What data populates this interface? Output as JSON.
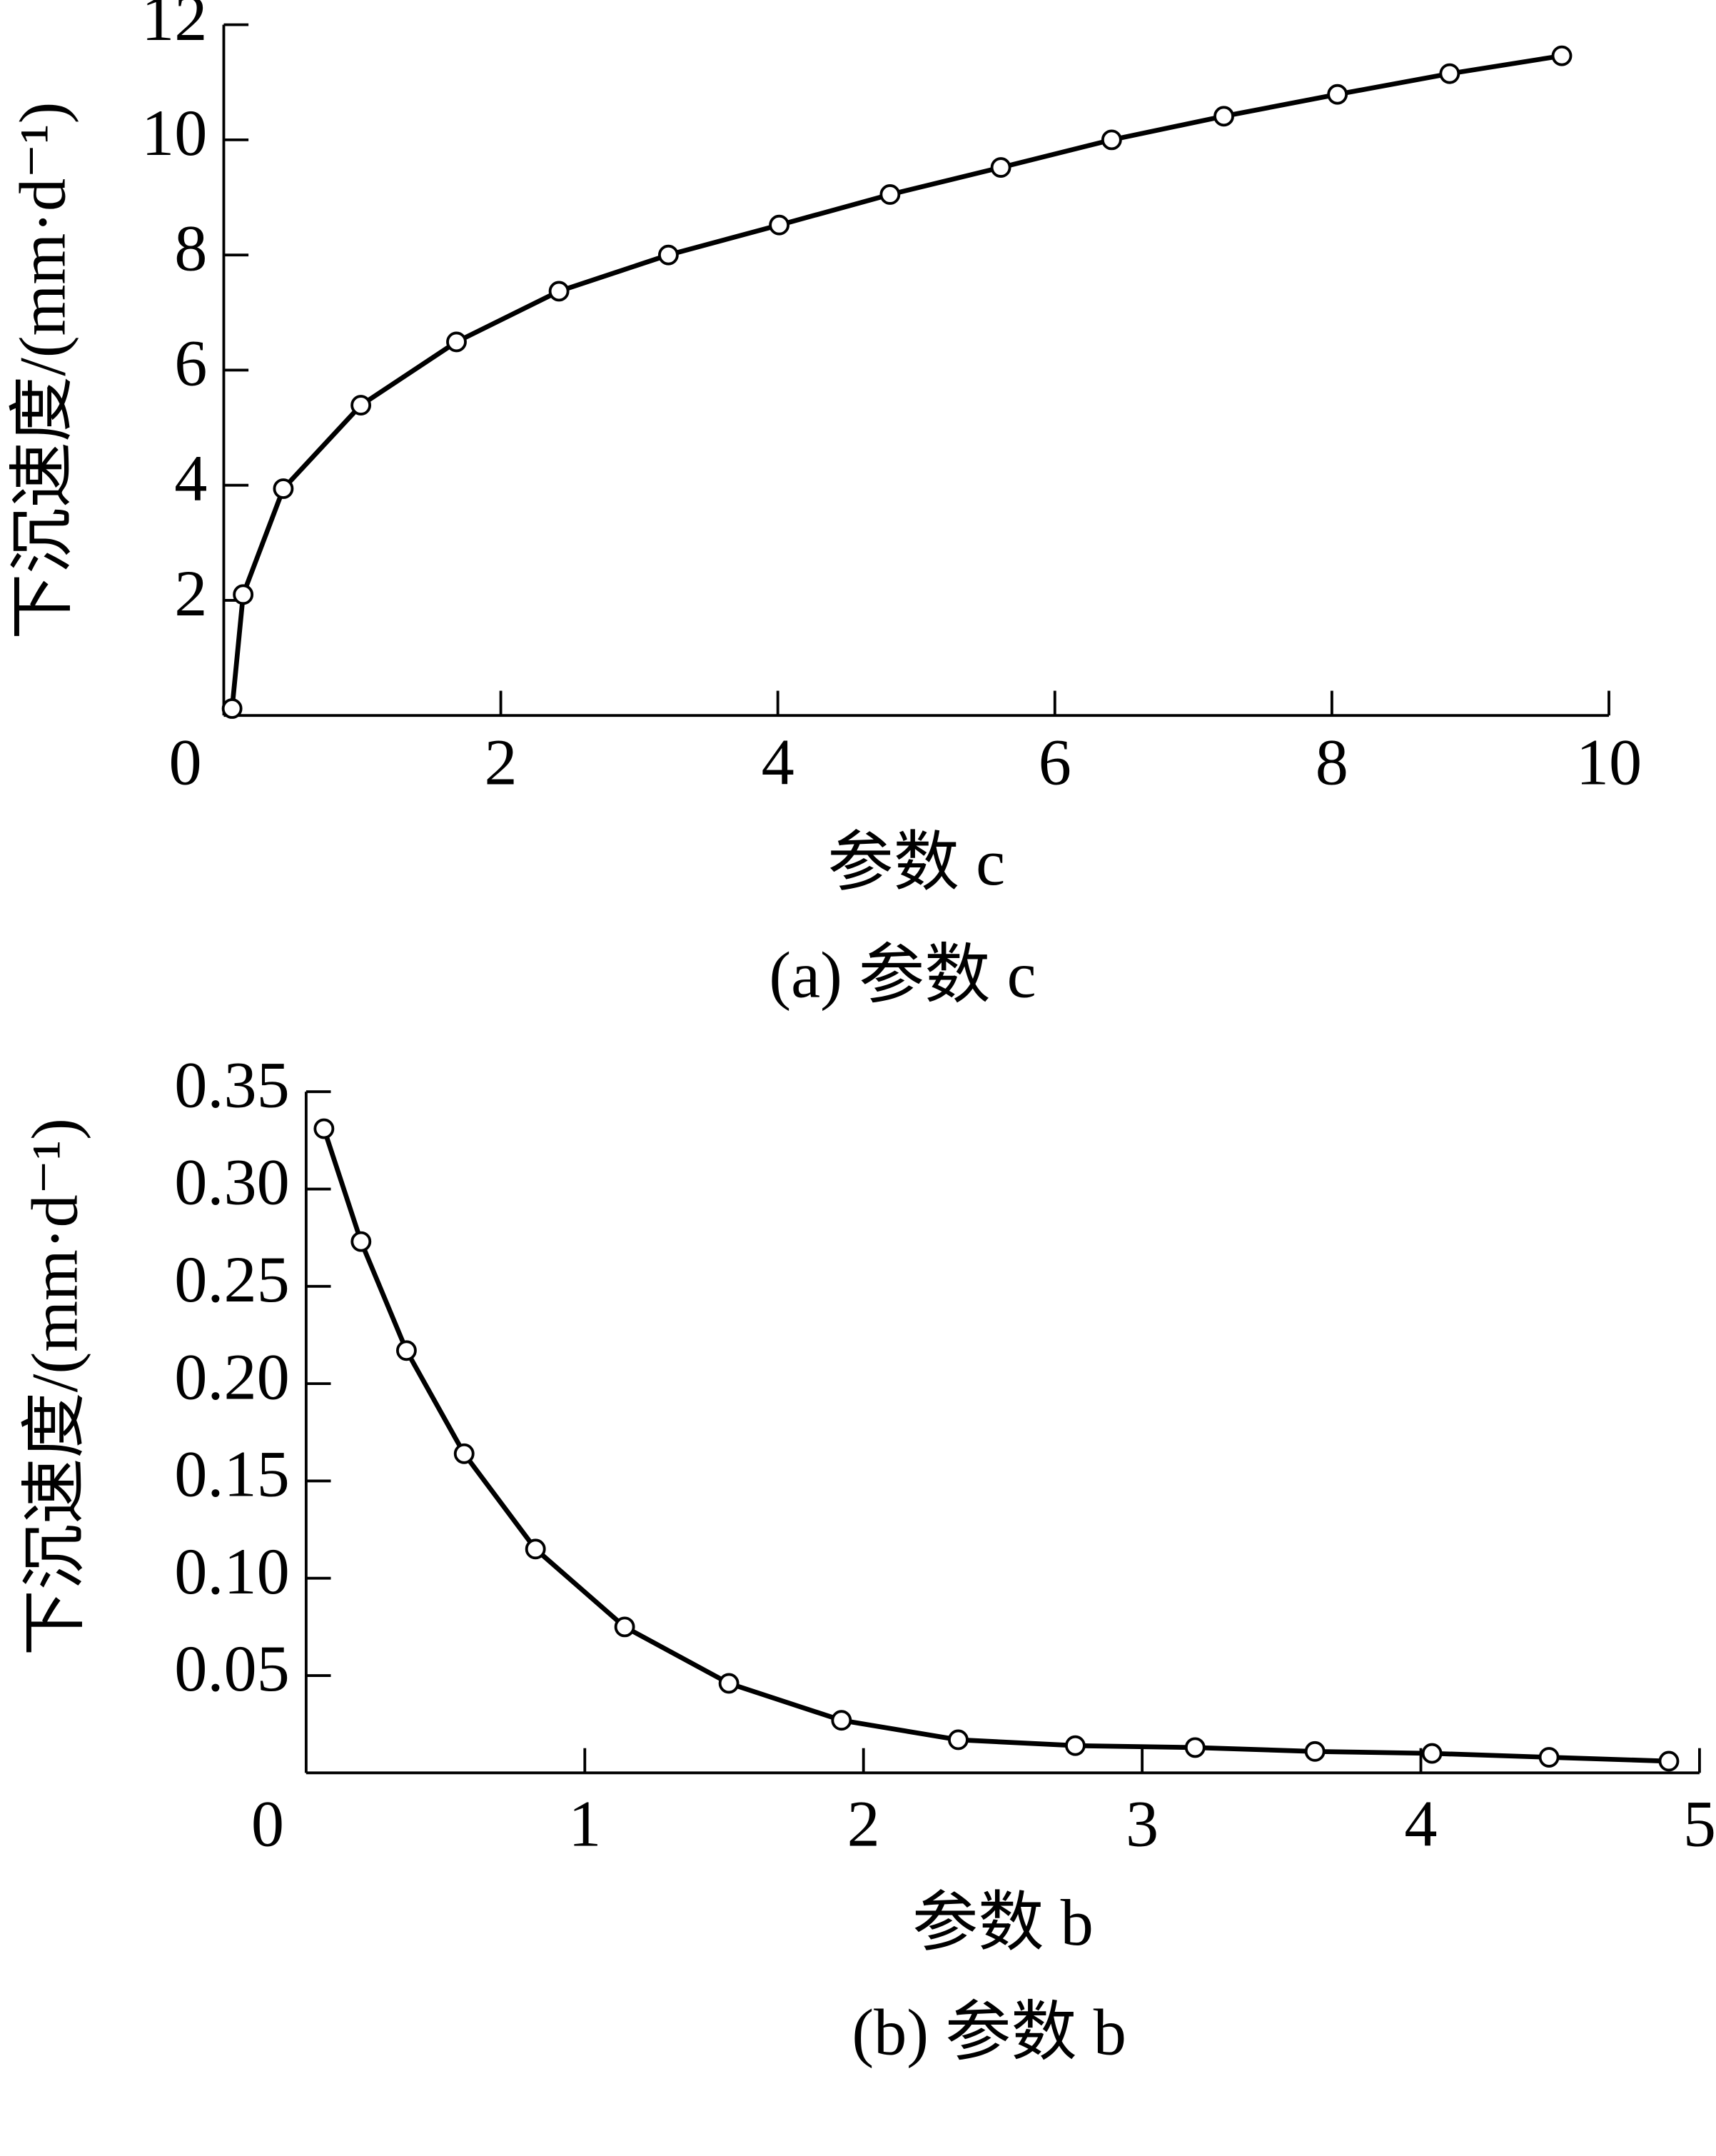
{
  "chart_data": [
    {
      "type": "line",
      "x_label": "参数 c",
      "y_label": "下沉速度/(mm·d⁻¹)",
      "caption": "(a) 参数 c",
      "color": "#000000",
      "x": [
        0.06,
        0.14,
        0.43,
        0.99,
        1.68,
        2.42,
        3.21,
        4.01,
        4.81,
        5.61,
        6.41,
        7.22,
        8.04,
        8.85,
        9.66
      ],
      "values": [
        0.12,
        2.1,
        3.94,
        5.39,
        6.49,
        7.37,
        8.0,
        8.52,
        9.05,
        9.52,
        10.0,
        10.41,
        10.79,
        11.15,
        11.46
      ],
      "xlim": [
        0,
        10
      ],
      "xticks": [
        0,
        2,
        4,
        6,
        8,
        10
      ],
      "ylim": [
        0,
        12
      ],
      "yticks": [
        2,
        4,
        6,
        8,
        10,
        12
      ]
    },
    {
      "type": "line",
      "x_label": "参数 b",
      "y_label": "下沉速度/(mm·d⁻¹)",
      "caption": "(b) 参数 b",
      "color": "#000000",
      "x": [
        0.064,
        0.197,
        0.36,
        0.567,
        0.823,
        1.143,
        1.517,
        1.921,
        2.34,
        2.76,
        3.19,
        3.62,
        4.04,
        4.46,
        4.89
      ],
      "values": [
        0.331,
        0.273,
        0.217,
        0.164,
        0.115,
        0.075,
        0.046,
        0.027,
        0.017,
        0.014,
        0.013,
        0.011,
        0.01,
        0.008,
        0.006
      ],
      "xlim": [
        0,
        5
      ],
      "xticks": [
        0,
        1,
        2,
        3,
        4,
        5
      ],
      "ylim": [
        0,
        0.35
      ],
      "yticks": [
        0.05,
        {
          "value": 0.1,
          "label": "0.10"
        },
        0.15,
        {
          "value": 0.2,
          "label": "0.20"
        },
        0.25,
        {
          "value": 0.3,
          "label": "0.30"
        },
        0.35
      ]
    }
  ]
}
